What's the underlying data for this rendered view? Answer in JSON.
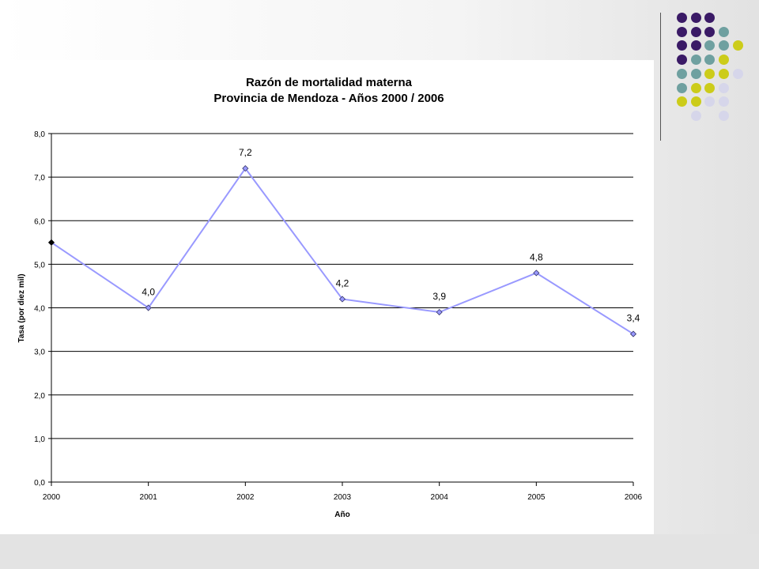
{
  "decor": {
    "dot_colors": {
      "purple": "#3a1a66",
      "teal": "#6fa0a0",
      "lime": "#cccc1a",
      "lavender": "#d6d6ea"
    },
    "dot_rows": [
      [
        "purple",
        "purple",
        "purple",
        null,
        null
      ],
      [
        "purple",
        "purple",
        "purple",
        "teal",
        null
      ],
      [
        "purple",
        "purple",
        "teal",
        "teal",
        "lime"
      ],
      [
        "purple",
        "teal",
        "teal",
        "lime",
        null
      ],
      [
        "teal",
        "teal",
        "lime",
        "lime",
        "lavender"
      ],
      [
        "teal",
        "lime",
        "lime",
        "lavender",
        null
      ],
      [
        "lime",
        "lime",
        "lavender",
        "lavender",
        null
      ],
      [
        null,
        "lavender",
        null,
        "lavender",
        null
      ]
    ]
  },
  "chart_data": {
    "type": "line",
    "title": "Razón de mortalidad materna",
    "subtitle": "Provincia de Mendoza - Años 2000 / 2006",
    "xlabel": "Año",
    "ylabel": "Tasa (por diez mil)",
    "x": [
      "2000",
      "2001",
      "2002",
      "2003",
      "2004",
      "2005",
      "2006"
    ],
    "series": [
      {
        "values": [
          5.5,
          4.0,
          7.2,
          4.2,
          3.9,
          4.8,
          3.4
        ],
        "data_labels": [
          "",
          "4,0",
          "7,2",
          "4,2",
          "3,9",
          "4,8",
          "3,4"
        ],
        "color": "#9999ff",
        "marker_color": "#9999ff"
      }
    ],
    "ylim": [
      0,
      8
    ],
    "yticks": [
      "0,0",
      "1,0",
      "2,0",
      "3,0",
      "4,0",
      "5,0",
      "6,0",
      "7,0",
      "8,0"
    ],
    "grid": true,
    "legend": "none"
  }
}
